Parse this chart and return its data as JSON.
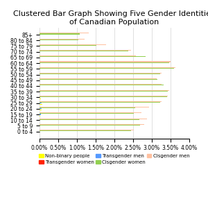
{
  "title": "Clustered Bar Graph Showing Five Gender Identities\nof Canadian Population",
  "age_groups": [
    "85+",
    "80 to 84",
    "75 to 79",
    "70 to 74",
    "65 to 69",
    "60 to 64",
    "55 to 59",
    "50 to 54",
    "45 to 49",
    "40 to 44",
    "35 to 39",
    "30 to 34",
    "25 to 29",
    "20 to 24",
    "15 to 19",
    "10 to 14",
    "5 to 9",
    "0 to 4"
  ],
  "series": {
    "Non-binary people": [
      0.0,
      0.0,
      0.0,
      0.0,
      0.0,
      0.0,
      0.0,
      0.0,
      0.0,
      0.0,
      0.0,
      0.04,
      0.08,
      0.06,
      0.02,
      0.0,
      0.0,
      0.0
    ],
    "Transgender women": [
      0.0,
      0.0,
      0.0,
      0.0,
      0.0,
      0.0,
      0.0,
      0.0,
      0.0,
      0.0,
      0.0,
      0.0,
      0.0,
      0.0,
      0.0,
      0.0,
      0.0,
      0.0
    ],
    "Transgender men": [
      0.0,
      0.0,
      0.0,
      0.0,
      0.0,
      0.0,
      0.0,
      0.0,
      0.0,
      0.0,
      0.0,
      0.0,
      0.06,
      0.06,
      0.05,
      0.0,
      0.0,
      0.0
    ],
    "Cisgender women": [
      1.07,
      1.05,
      1.53,
      2.38,
      2.83,
      3.47,
      3.6,
      3.22,
      3.15,
      3.32,
      3.43,
      3.4,
      3.22,
      2.55,
      2.52,
      2.67,
      2.68,
      2.44
    ],
    "Cisgender men": [
      1.32,
      1.2,
      1.78,
      2.45,
      2.58,
      3.5,
      3.63,
      3.27,
      3.14,
      3.27,
      3.46,
      3.43,
      3.27,
      2.93,
      2.73,
      2.87,
      2.8,
      2.52
    ]
  },
  "colors": {
    "Non-binary people": "#FFFF00",
    "Transgender women": "#FF2200",
    "Transgender men": "#5599FF",
    "Cisgender women": "#92D050",
    "Cisgender men": "#FFC09F"
  },
  "series_order": [
    "Cisgender men",
    "Cisgender women",
    "Transgender men",
    "Transgender women",
    "Non-binary people"
  ],
  "legend_order": [
    "Non-binary people",
    "Transgender women",
    "Transgender men",
    "Cisgender women",
    "Cisgender men"
  ],
  "xlim": [
    0.0,
    4.0
  ],
  "background_color": "#FFFFFF",
  "title_fontsize": 8.0,
  "label_fontsize": 5.5,
  "legend_fontsize": 5.0
}
